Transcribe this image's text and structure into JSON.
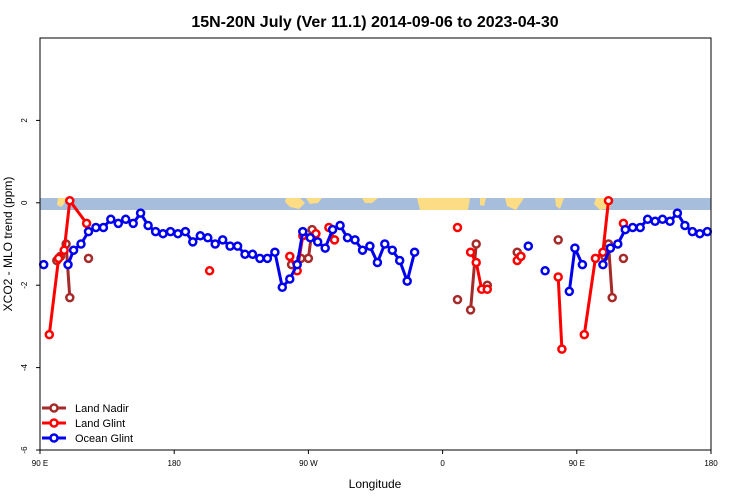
{
  "chart_data": {
    "type": "line",
    "title": "15N-20N July (Ver 11.1)   2014-09-06 to 2023-04-30",
    "xlabel": "Longitude",
    "ylabel": "XCO2 - MLO trend (ppm)",
    "xlim": [
      0,
      360
    ],
    "ylim": [
      -6,
      4
    ],
    "x_ticks": [
      {
        "value": 0,
        "label": "90 E"
      },
      {
        "value": 72,
        "label": "180"
      },
      {
        "value": 144,
        "label": "90 W"
      },
      {
        "value": 216,
        "label": "0"
      },
      {
        "value": 288,
        "label": "90 E"
      },
      {
        "value": 360,
        "label": "180"
      }
    ],
    "y_ticks": [
      {
        "value": 2,
        "label": "2"
      },
      {
        "value": 0,
        "label": "0"
      },
      {
        "value": -2,
        "label": "-2"
      },
      {
        "value": -4,
        "label": "-4"
      },
      {
        "value": -6,
        "label": "-6"
      }
    ],
    "grid": false,
    "legend_position": "bottom-left",
    "land_band": {
      "y_range": [
        -0.2,
        0.1
      ],
      "ocean_color": "#a6bddb",
      "land_color": "#fddc86"
    },
    "series": [
      {
        "name": "Land Nadir",
        "color": "#a52a2a",
        "segments": [
          [
            [
              9,
              -1.4
            ],
            [
              11,
              -1.3
            ],
            [
              14,
              -1.0
            ],
            [
              16,
              -2.3
            ]
          ],
          [
            [
              26,
              -1.35
            ]
          ],
          [
            [
              135,
              -1.5
            ],
            [
              140,
              -1.35
            ],
            [
              144,
              -1.35
            ],
            [
              146,
              -0.65
            ]
          ],
          [
            [
              224,
              -2.35
            ]
          ],
          [
            [
              231,
              -2.6
            ],
            [
              234,
              -1.0
            ]
          ],
          [
            [
              240,
              -2.0
            ]
          ],
          [
            [
              256,
              -1.2
            ],
            [
              258,
              -1.3
            ]
          ],
          [
            [
              278,
              -0.9
            ]
          ],
          [
            [
              303,
              -1.3
            ],
            [
              305,
              -1.0
            ],
            [
              307,
              -2.3
            ]
          ],
          [
            [
              313,
              -1.35
            ]
          ]
        ]
      },
      {
        "name": "Land Glint",
        "color": "#ff0000",
        "segments": [
          [
            [
              5,
              -3.2
            ],
            [
              10,
              -1.35
            ],
            [
              13,
              -1.15
            ],
            [
              16,
              0.05
            ],
            [
              25,
              -0.5
            ]
          ],
          [
            [
              91,
              -1.65
            ]
          ],
          [
            [
              134,
              -1.3
            ],
            [
              138,
              -1.65
            ],
            [
              141,
              -0.8
            ],
            [
              148,
              -0.75
            ]
          ],
          [
            [
              155,
              -0.6
            ],
            [
              158,
              -0.9
            ]
          ],
          [
            [
              224,
              -0.6
            ]
          ],
          [
            [
              231,
              -1.2
            ],
            [
              234,
              -1.45
            ],
            [
              237,
              -2.1
            ],
            [
              240,
              -2.1
            ]
          ],
          [
            [
              256,
              -1.4
            ],
            [
              258,
              -1.3
            ]
          ],
          [
            [
              278,
              -1.8
            ],
            [
              280,
              -3.55
            ]
          ],
          [
            [
              292,
              -3.2
            ],
            [
              298,
              -1.35
            ],
            [
              302,
              -1.2
            ],
            [
              305,
              0.05
            ]
          ],
          [
            [
              313,
              -0.5
            ]
          ]
        ]
      },
      {
        "name": "Ocean Glint",
        "color": "#0000ee",
        "segments": [
          [
            [
              2,
              -1.5
            ]
          ],
          [
            [
              15,
              -1.5
            ],
            [
              18,
              -1.15
            ],
            [
              22,
              -1.0
            ],
            [
              26,
              -0.7
            ],
            [
              30,
              -0.6
            ],
            [
              34,
              -0.6
            ],
            [
              38,
              -0.4
            ],
            [
              42,
              -0.5
            ],
            [
              46,
              -0.4
            ],
            [
              50,
              -0.5
            ],
            [
              54,
              -0.25
            ],
            [
              58,
              -0.55
            ],
            [
              62,
              -0.7
            ],
            [
              66,
              -0.75
            ],
            [
              70,
              -0.7
            ],
            [
              74,
              -0.75
            ],
            [
              78,
              -0.7
            ],
            [
              82,
              -0.95
            ],
            [
              86,
              -0.8
            ],
            [
              90,
              -0.85
            ],
            [
              94,
              -1.0
            ],
            [
              98,
              -0.9
            ],
            [
              102,
              -1.05
            ],
            [
              106,
              -1.05
            ],
            [
              110,
              -1.25
            ],
            [
              114,
              -1.25
            ],
            [
              118,
              -1.35
            ],
            [
              122,
              -1.35
            ],
            [
              126,
              -1.2
            ],
            [
              130,
              -2.05
            ],
            [
              134,
              -1.85
            ],
            [
              138,
              -1.5
            ],
            [
              141,
              -0.7
            ],
            [
              145,
              -0.85
            ],
            [
              149,
              -0.95
            ],
            [
              153,
              -1.1
            ],
            [
              157,
              -0.65
            ],
            [
              161,
              -0.55
            ],
            [
              165,
              -0.85
            ],
            [
              169,
              -0.9
            ],
            [
              173,
              -1.15
            ],
            [
              177,
              -1.05
            ],
            [
              181,
              -1.45
            ],
            [
              185,
              -1.0
            ],
            [
              189,
              -1.15
            ],
            [
              193,
              -1.4
            ],
            [
              197,
              -1.9
            ],
            [
              201,
              -1.2
            ]
          ],
          [
            [
              262,
              -1.05
            ]
          ],
          [
            [
              271,
              -1.65
            ]
          ],
          [
            [
              284,
              -2.15
            ],
            [
              287,
              -1.1
            ],
            [
              291,
              -1.5
            ]
          ],
          [
            [
              302,
              -1.5
            ],
            [
              306,
              -1.1
            ],
            [
              310,
              -1.0
            ],
            [
              314,
              -0.65
            ],
            [
              318,
              -0.6
            ],
            [
              322,
              -0.6
            ],
            [
              326,
              -0.4
            ],
            [
              330,
              -0.45
            ],
            [
              334,
              -0.4
            ],
            [
              338,
              -0.45
            ],
            [
              342,
              -0.25
            ],
            [
              346,
              -0.55
            ],
            [
              350,
              -0.7
            ],
            [
              354,
              -0.75
            ],
            [
              358,
              -0.7
            ]
          ]
        ]
      }
    ]
  }
}
